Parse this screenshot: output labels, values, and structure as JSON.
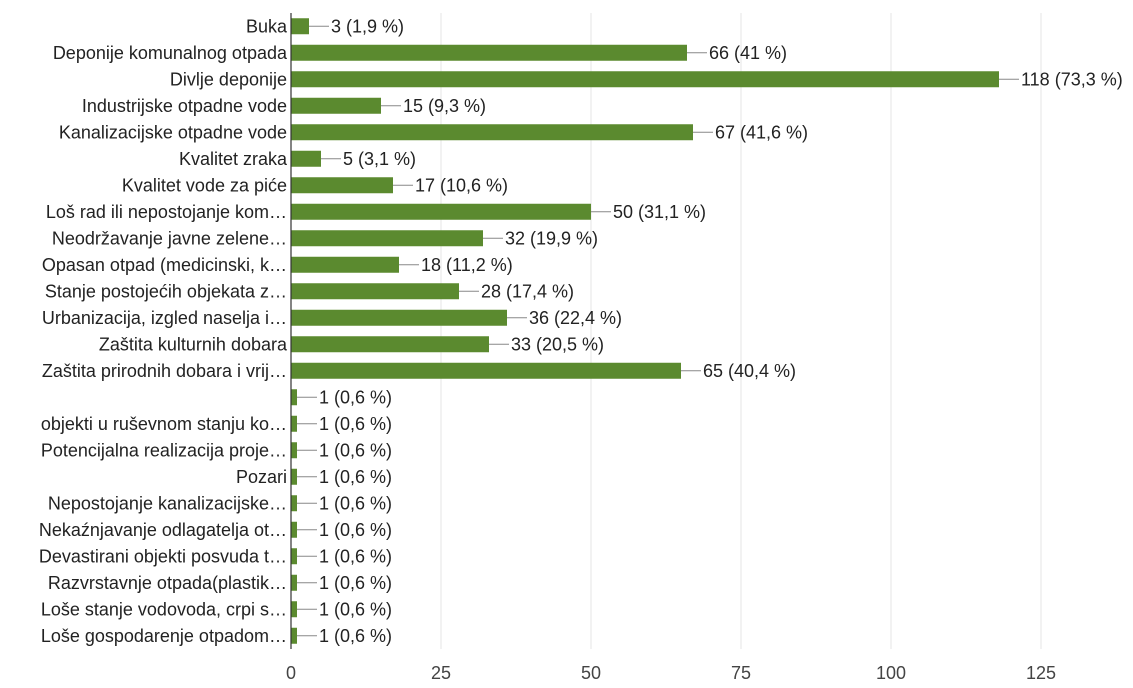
{
  "chart_data": {
    "type": "bar",
    "orientation": "horizontal",
    "categories": [
      "Buka",
      "Deponije komunalnog otpada",
      "Divlje deponije",
      "Industrijske otpadne vode",
      "Kanalizacijske otpadne vode",
      "Kvalitet zraka",
      "Kvalitet vode za piće",
      "Loš rad ili nepostojanje kom…",
      "Neodržavanje javne zelene…",
      "Opasan otpad (medicinski, k…",
      "Stanje postojećih objekata z…",
      "Urbanizacija, izgled naselja i…",
      "Zaštita kulturnih dobara",
      "Zaštita prirodnih dobara i vrij…",
      "",
      "objekti u ruševnom stanju ko…",
      "Potencijalna realizacija proje…",
      "Pozari",
      "Nepostojanje kanalizacijske…",
      "Nekaźnjavanje odlagatelja ot…",
      "Devastirani objekti posvuda t…",
      "Razvrstavnje otpada(plastik…",
      "Loše stanje vodovoda, crpi s…",
      "Loše gospodarenje otpadom…"
    ],
    "values": [
      3,
      66,
      118,
      15,
      67,
      5,
      17,
      50,
      32,
      18,
      28,
      36,
      33,
      65,
      1,
      1,
      1,
      1,
      1,
      1,
      1,
      1,
      1,
      1
    ],
    "data_labels": [
      "3 (1,9 %)",
      "66 (41 %)",
      "118 (73,3 %)",
      "15 (9,3 %)",
      "67 (41,6 %)",
      "5 (3,1 %)",
      "17 (10,6 %)",
      "50 (31,1 %)",
      "32 (19,9 %)",
      "18 (11,2 %)",
      "28 (17,4 %)",
      "36 (22,4 %)",
      "33 (20,5 %)",
      "65 (40,4 %)",
      "1 (0,6 %)",
      "1 (0,6 %)",
      "1 (0,6 %)",
      "1 (0,6 %)",
      "1 (0,6 %)",
      "1 (0,6 %)",
      "1 (0,6 %)",
      "1 (0,6 %)",
      "1 (0,6 %)",
      "1 (0,6 %)"
    ],
    "x_ticks": [
      0,
      25,
      50,
      75,
      100,
      125
    ],
    "xlim": [
      0,
      125
    ],
    "title": "",
    "xlabel": "",
    "ylabel": "",
    "grid": true,
    "legend": "none",
    "bar_color": "#5b8a2f"
  }
}
